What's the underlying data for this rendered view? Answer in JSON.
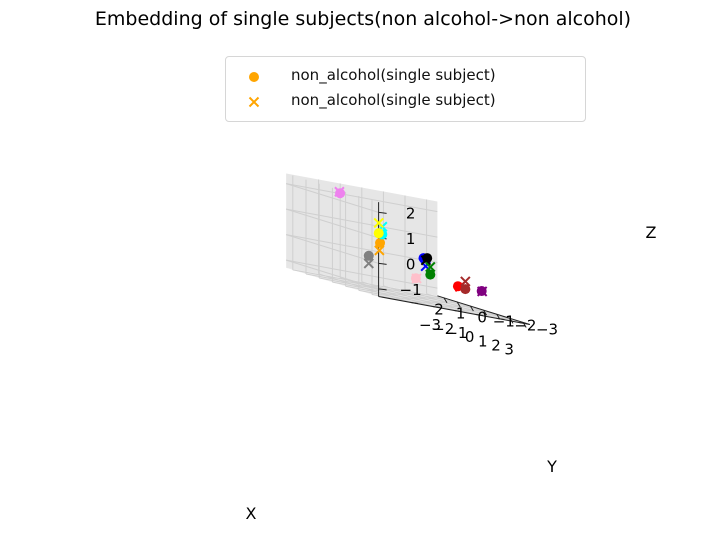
{
  "chart_data": {
    "type": "scatter",
    "title": "Embedding of single subjects(non alcohol->non alcohol)",
    "xlabel": "X",
    "ylabel": "Y",
    "zlabel": "Z",
    "xlim": [
      -3,
      3
    ],
    "ylim": [
      -3,
      3
    ],
    "zlim": [
      -1.3,
      2.4
    ],
    "x_ticks": [
      "−3",
      "−2",
      "−1",
      "0",
      "1",
      "2",
      "3"
    ],
    "y_ticks": [
      "−3",
      "−2",
      "−1",
      "0",
      "1",
      "2"
    ],
    "z_ticks": [
      "−1",
      "0",
      "1",
      "2"
    ],
    "grid": true,
    "legend_position": "top-center",
    "legend": [
      {
        "label": "non_alcohol(single subject)",
        "marker": "circle",
        "color": "#ffa500"
      },
      {
        "label": "non_alcohol(single subject)",
        "marker": "x",
        "color": "#ffa500"
      }
    ],
    "points": [
      {
        "color": "#ee82ee",
        "circle": [
          -2.2,
          1.8,
          2.1
        ],
        "x": [
          -2.25,
          1.8,
          2.15
        ]
      },
      {
        "color": "#ffa500",
        "circle": [
          -1.3,
          0.5,
          0.5
        ],
        "x": [
          -1.35,
          0.5,
          0.2
        ]
      },
      {
        "color": "#808080",
        "circle": [
          -1.5,
          0.9,
          -0.1
        ],
        "x": [
          -1.5,
          0.9,
          -0.4
        ]
      },
      {
        "color": "#ff0000",
        "circle": [
          -0.8,
          -2.8,
          -0.6
        ],
        "x": [
          -0.65,
          -2.8,
          -0.6
        ]
      },
      {
        "color": "#800080",
        "circle": [
          1.0,
          -2.8,
          -0.5
        ],
        "x": [
          1.2,
          -2.7,
          -0.5
        ]
      },
      {
        "color": "#ffc0cb",
        "circle": [
          0.6,
          0.0,
          -0.5
        ],
        "x": [
          0.65,
          0.0,
          -0.5
        ]
      },
      {
        "color": "#0000ff",
        "circle": [
          1.5,
          0.2,
          0.4
        ],
        "x": [
          1.5,
          0.1,
          0.1
        ]
      },
      {
        "color": "#00ffff",
        "circle": [
          1.0,
          1.8,
          1.0
        ],
        "x": [
          1.0,
          1.8,
          1.3
        ]
      },
      {
        "color": "#000000",
        "circle": [
          2.6,
          0.7,
          0.5
        ],
        "x": [
          2.5,
          0.7,
          0.4
        ]
      },
      {
        "color": "#ffff00",
        "circle": [
          2.2,
          2.7,
          1.1
        ],
        "x": [
          2.2,
          2.7,
          1.5
        ]
      },
      {
        "color": "#008000",
        "circle": [
          3.0,
          0.8,
          -0.1
        ],
        "x": [
          3.0,
          0.8,
          0.2
        ]
      },
      {
        "color": "#a52a2a",
        "circle": [
          3.2,
          -0.7,
          -0.4
        ],
        "x": [
          3.2,
          -0.7,
          -0.1
        ]
      }
    ]
  }
}
